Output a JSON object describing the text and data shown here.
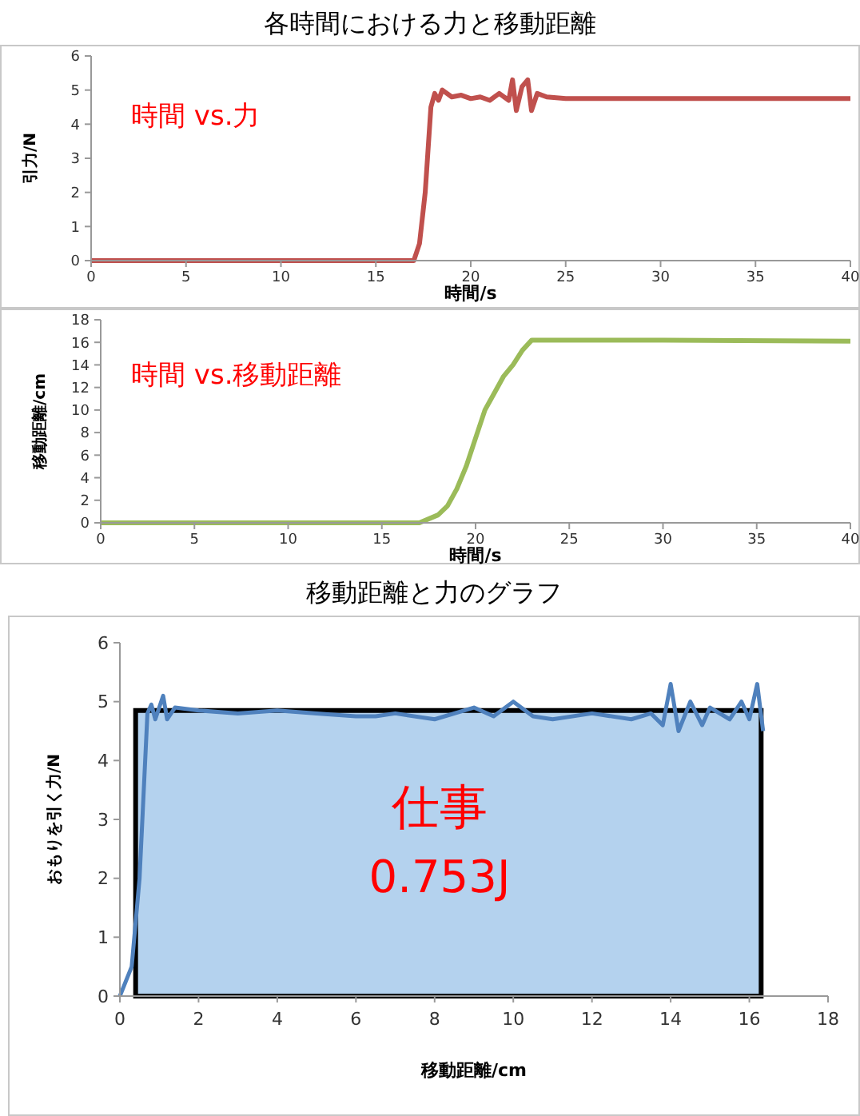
{
  "chart_data": [
    {
      "type": "line",
      "title": "各時間における力と移動距離",
      "ylabel": "引力/N",
      "xlabel": "時間/s",
      "annotations": [
        "時間 vs.力"
      ],
      "xlim": [
        0,
        40
      ],
      "xticks": [
        0,
        5,
        10,
        15,
        20,
        25,
        30,
        35,
        40
      ],
      "ylim": [
        0,
        6
      ],
      "yticks": [
        0,
        1,
        2,
        3,
        4,
        5,
        6
      ],
      "grid": false,
      "series": [
        {
          "color": "#c0504d",
          "x": [
            0,
            17,
            17.3,
            17.6,
            17.9,
            18.1,
            18.3,
            18.5,
            19,
            19.5,
            20,
            20.5,
            21,
            21.5,
            22,
            22.2,
            22.4,
            22.7,
            23,
            23.2,
            23.5,
            24,
            25,
            30,
            35,
            40
          ],
          "values": [
            0,
            0,
            0.5,
            2,
            4.5,
            4.9,
            4.7,
            5.0,
            4.8,
            4.85,
            4.75,
            4.8,
            4.7,
            4.9,
            4.7,
            5.3,
            4.4,
            5.1,
            5.3,
            4.4,
            4.9,
            4.8,
            4.75,
            4.75,
            4.75,
            4.75
          ]
        }
      ]
    },
    {
      "type": "line",
      "ylabel": "移動距離/cm",
      "xlabel": "時間/s",
      "annotations": [
        "時間 vs.移動距離"
      ],
      "xlim": [
        0,
        40
      ],
      "xticks": [
        0,
        5,
        10,
        15,
        20,
        25,
        30,
        35,
        40
      ],
      "ylim": [
        0,
        18
      ],
      "yticks": [
        0,
        2,
        4,
        6,
        8,
        10,
        12,
        14,
        16,
        18
      ],
      "grid": false,
      "series": [
        {
          "color": "#9bbb59",
          "x": [
            0,
            17,
            18,
            18.5,
            19,
            19.5,
            20,
            20.5,
            21,
            21.5,
            22,
            22.5,
            23,
            30,
            40
          ],
          "values": [
            0,
            0,
            0.7,
            1.5,
            3,
            5,
            7.5,
            10,
            11.5,
            13,
            14,
            15.3,
            16.2,
            16.2,
            16.1
          ]
        }
      ]
    },
    {
      "type": "line",
      "title": "移動距離と力のグラフ",
      "ylabel": "おもりを引く力/N",
      "xlabel": "移動距離/cm",
      "annotations": [
        "仕事",
        "0.753J"
      ],
      "xlim": [
        0,
        18
      ],
      "xticks": [
        0,
        2,
        4,
        6,
        8,
        10,
        12,
        14,
        16,
        18
      ],
      "ylim": [
        0,
        6
      ],
      "yticks": [
        0,
        1,
        2,
        3,
        4,
        5,
        6
      ],
      "grid": false,
      "series": [
        {
          "type": "area",
          "color": "#b4d2ee",
          "x": [
            0.4,
            16.3
          ],
          "values": [
            4.85,
            4.85
          ]
        },
        {
          "color": "#4f81bd",
          "x": [
            0,
            0.3,
            0.5,
            0.7,
            0.8,
            0.9,
            1.0,
            1.1,
            1.2,
            1.4,
            2,
            3,
            4,
            5,
            6,
            6.5,
            7,
            8,
            9,
            9.5,
            10,
            10.5,
            11,
            12,
            13,
            13.5,
            13.8,
            14,
            14.2,
            14.5,
            14.8,
            15,
            15.5,
            15.8,
            16,
            16.2,
            16.35
          ],
          "values": [
            0,
            0.5,
            2,
            4.8,
            4.95,
            4.7,
            4.9,
            5.1,
            4.7,
            4.9,
            4.85,
            4.8,
            4.85,
            4.8,
            4.75,
            4.75,
            4.8,
            4.7,
            4.9,
            4.75,
            5.0,
            4.75,
            4.7,
            4.8,
            4.7,
            4.8,
            4.6,
            5.3,
            4.5,
            5.0,
            4.6,
            4.9,
            4.7,
            5.0,
            4.7,
            5.3,
            4.5
          ]
        }
      ]
    }
  ]
}
